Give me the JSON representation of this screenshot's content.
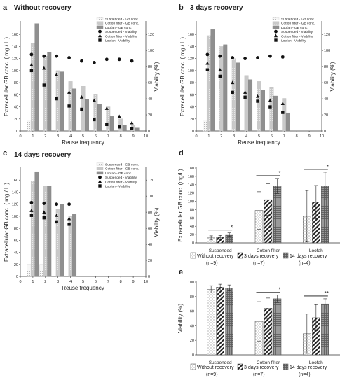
{
  "chart_data": [
    {
      "panel": "a",
      "type": "bar",
      "title": "Without recovery",
      "xlabel": "Reuse frequency",
      "ylabel": "Extracellular GB conc. ( mg / L )",
      "y2label": "Viability (%)",
      "x": [
        1,
        2,
        3,
        4,
        5,
        6,
        7,
        8,
        9
      ],
      "xticks": [
        0,
        1,
        2,
        3,
        4,
        5,
        6,
        7,
        8,
        9,
        10
      ],
      "yticks": [
        0,
        20,
        40,
        60,
        80,
        100,
        120,
        140,
        160
      ],
      "y2ticks": [
        0,
        20,
        40,
        60,
        80,
        100,
        120
      ],
      "ylim": [
        0,
        180
      ],
      "y2lim": [
        0,
        135
      ],
      "legend": [
        "Suspended - GB conc.",
        "Cotton filter - GB conc.",
        "Loofah - GB conc.",
        "Suspended - Viability",
        "Cotton filter - Viability",
        "Loofah - Viability"
      ],
      "series": [
        {
          "name": "Suspended - GB conc.",
          "kind": "bar",
          "values": [
            18,
            0,
            0,
            0,
            0,
            0,
            0,
            0,
            0
          ]
        },
        {
          "name": "Cotton filter - GB conc.",
          "kind": "bar",
          "values": [
            145,
            124,
            100,
            82,
            74,
            60,
            40,
            20,
            10
          ]
        },
        {
          "name": "Loofah - GB conc.",
          "kind": "bar",
          "values": [
            178,
            130,
            98,
            70,
            52,
            45,
            24,
            10,
            5
          ]
        },
        {
          "name": "Suspended - Viability",
          "kind": "marker",
          "values": [
            95,
            93,
            93,
            91,
            87,
            85,
            89,
            89,
            87
          ]
        },
        {
          "name": "Cotton filter - Viability",
          "kind": "marker",
          "values": [
            82,
            78,
            70,
            48,
            42,
            38,
            28,
            18,
            10
          ]
        },
        {
          "name": "Loofah - Viability",
          "kind": "marker",
          "values": [
            75,
            57,
            40,
            31,
            27,
            14,
            8,
            5,
            3
          ]
        }
      ]
    },
    {
      "panel": "b",
      "type": "bar",
      "title": "3 days recovery",
      "xlabel": "Reuse frequency",
      "ylabel": "Extracellular GB conc. ( mg / L )",
      "y2label": "Viability (%)",
      "x": [
        1,
        2,
        3,
        4,
        5,
        6,
        7
      ],
      "xticks": [
        0,
        1,
        2,
        3,
        4,
        5,
        6,
        7,
        8,
        9,
        10
      ],
      "yticks": [
        0,
        20,
        40,
        60,
        80,
        100,
        120,
        140,
        160
      ],
      "y2ticks": [
        0,
        20,
        40,
        60,
        80,
        100,
        120
      ],
      "ylim": [
        0,
        180
      ],
      "y2lim": [
        0,
        135
      ],
      "legend": [
        "Suspended - GB conc.",
        "Cotton filter - GB conc.",
        "Loofah - GB conc.",
        "Suspended - Viability",
        "Cotton filter - Viability",
        "Loofah - Viability"
      ],
      "series": [
        {
          "name": "Suspended - GB conc.",
          "kind": "bar",
          "values": [
            18,
            0,
            0,
            0,
            0,
            0,
            0
          ]
        },
        {
          "name": "Cotton filter - GB conc.",
          "kind": "bar",
          "values": [
            158,
            140,
            120,
            92,
            82,
            72,
            54
          ]
        },
        {
          "name": "Loofah - GB conc.",
          "kind": "bar",
          "values": [
            168,
            143,
            113,
            85,
            68,
            58,
            30
          ]
        },
        {
          "name": "Suspended - Viability",
          "kind": "marker",
          "values": [
            95,
            93,
            91,
            90,
            91,
            93,
            92
          ]
        },
        {
          "name": "Cotton filter - Viability",
          "kind": "marker",
          "values": [
            84,
            76,
            60,
            48,
            43,
            38,
            34
          ]
        },
        {
          "name": "Loofah - Viability",
          "kind": "marker",
          "values": [
            76,
            68,
            48,
            42,
            37,
            30,
            23
          ]
        }
      ]
    },
    {
      "panel": "c",
      "type": "bar",
      "title": "14 days recovery",
      "xlabel": "Reuse frequency",
      "ylabel": "Extracellular GB conc. ( mg / L )",
      "y2label": "Viability (%)",
      "x": [
        1,
        2,
        3,
        4
      ],
      "xticks": [
        0,
        1,
        2,
        3,
        4,
        5,
        6,
        7,
        8,
        9,
        10
      ],
      "yticks": [
        0,
        20,
        40,
        60,
        80,
        100,
        120,
        140,
        160
      ],
      "y2ticks": [
        0,
        20,
        40,
        60,
        80,
        100,
        120
      ],
      "ylim": [
        0,
        180
      ],
      "y2lim": [
        0,
        135
      ],
      "legend": [
        "Suspended - GB conc.",
        "Cotton filter - GB conc.",
        "Loofah - GB conc.",
        "Suspended - Viability",
        "Cotton filter - Viability",
        "Loofah - Viability"
      ],
      "series": [
        {
          "name": "Suspended - GB conc.",
          "kind": "bar",
          "values": [
            20,
            20,
            0,
            0
          ]
        },
        {
          "name": "Cotton filter - GB conc.",
          "kind": "bar",
          "values": [
            158,
            150,
            112,
            100
          ]
        },
        {
          "name": "Loofah - GB conc.",
          "kind": "bar",
          "values": [
            174,
            150,
            120,
            104
          ]
        },
        {
          "name": "Suspended - Viability",
          "kind": "marker",
          "values": [
            92,
            91,
            90,
            90
          ]
        },
        {
          "name": "Cotton filter - Viability",
          "kind": "marker",
          "values": [
            82,
            80,
            76,
            72
          ]
        },
        {
          "name": "Loofah - Viability",
          "kind": "marker",
          "values": [
            76,
            73,
            68,
            65
          ]
        }
      ]
    },
    {
      "panel": "d",
      "type": "bar",
      "ylabel": "Extracellular GB conc. (mg/L)",
      "categories": [
        "Suspended",
        "Cotton filter",
        "Loofah"
      ],
      "yticks": [
        0,
        20,
        40,
        60,
        80,
        100,
        120,
        140,
        160,
        180
      ],
      "ylim": [
        0,
        180
      ],
      "legend": [
        "Without recovery (n=9)",
        "3 days recovery (n=7)",
        "14 days recovery (n=4)"
      ],
      "legend_lines": [
        [
          "Without recovery",
          "(n=9)"
        ],
        [
          "3 days recovery",
          "(n=7)"
        ],
        [
          "14 days recovery",
          "(n=4)"
        ]
      ],
      "series": [
        {
          "name": "Without recovery (n=9)",
          "values": [
            12,
            78,
            64
          ],
          "errors": [
            5,
            45,
            62
          ]
        },
        {
          "name": "3 days recovery (n=7)",
          "values": [
            13,
            104,
            98
          ],
          "errors": [
            5,
            38,
            40
          ]
        },
        {
          "name": "14 days recovery (n=4)",
          "values": [
            20,
            137,
            137
          ],
          "errors": [
            4,
            18,
            33
          ]
        }
      ],
      "significance": [
        "*",
        "*",
        "*"
      ]
    },
    {
      "panel": "e",
      "type": "bar",
      "ylabel": "Viability (%)",
      "categories": [
        "Suspended",
        "Cotton filter",
        "Loofah"
      ],
      "yticks": [
        0,
        20,
        40,
        60,
        80,
        100
      ],
      "ylim": [
        0,
        100
      ],
      "legend": [
        "Without recovery (n=9)",
        "3 days recovery (n=7)",
        "14 days recovery (n=4)"
      ],
      "legend_lines": [
        [
          "Without recovery",
          "(n=9)"
        ],
        [
          "3 days recovery",
          "(n=7)"
        ],
        [
          "14 days recovery",
          "(n=4)"
        ]
      ],
      "series": [
        {
          "name": "Without recovery (n=9)",
          "values": [
            90,
            46,
            29
          ],
          "errors": [
            5,
            27,
            27
          ]
        },
        {
          "name": "3 days recovery (n=7)",
          "values": [
            93,
            64,
            51
          ],
          "errors": [
            4,
            14,
            18
          ]
        },
        {
          "name": "14 days recovery (n=4)",
          "values": [
            92,
            77,
            70
          ],
          "errors": [
            4,
            5,
            7
          ]
        }
      ],
      "significance": [
        "*",
        "**"
      ]
    }
  ]
}
